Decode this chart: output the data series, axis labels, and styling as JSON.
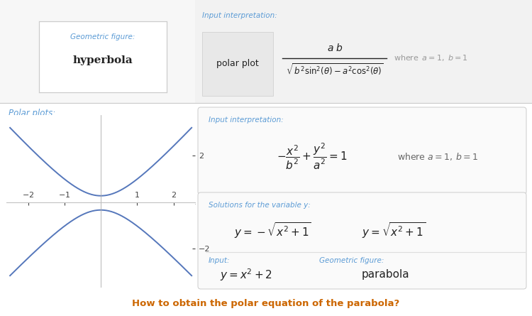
{
  "bg_color": "#ffffff",
  "box_border_color": "#cccccc",
  "teal_color": "#5b9bd5",
  "dark_text": "#222222",
  "gray_text": "#999999",
  "plot_line_color": "#5577bb",
  "question_color": "#cc6600",
  "geo_label": "Geometric figure:",
  "geo_value": "hyperbola",
  "input_interp_label": "Input interpretation:",
  "polar_plot_text": "polar plot",
  "polar_plots_label": "Polar plots:",
  "input_interp2_label": "Input interpretation:",
  "solutions_label": "Solutions for the variable y:",
  "sol1": "y = -\\sqrt{x^2+1}",
  "sol2": "y = \\sqrt{x^2+1}",
  "input_label": "Input:",
  "input_value": "y = x^2 + 2",
  "geom_fig_label": "Geometric figure:",
  "geom_fig_value": "parabola",
  "question": "How to obtain the polar equation of the parabola?"
}
